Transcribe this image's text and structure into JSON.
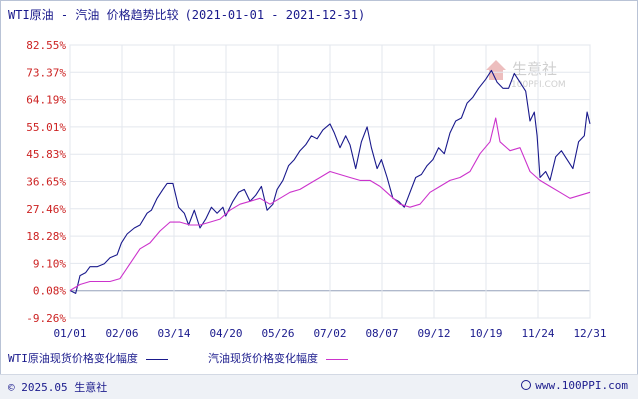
{
  "title": "WTI原油 - 汽油 价格趋势比较",
  "date_range": "(2021-01-01 - 2021-12-31)",
  "watermark": {
    "name": "生意社",
    "url": "100PPI.COM"
  },
  "legend": [
    {
      "label": "WTI原油现货价格变化幅度",
      "color": "#1a1a8c"
    },
    {
      "label": "汽油现货价格变化幅度",
      "color": "#cc33cc"
    }
  ],
  "footer": {
    "copyright": "© 2025.05 生意社",
    "site": "www.100PPI.com"
  },
  "chart_data": {
    "type": "line",
    "y_unit": "%",
    "y_ticks": [
      "82.55%",
      "73.37%",
      "64.19%",
      "55.01%",
      "45.83%",
      "36.65%",
      "27.46%",
      "18.28%",
      "9.10%",
      "0.08%",
      "-9.26%"
    ],
    "ylim": [
      -9.26,
      82.55
    ],
    "x_ticks": [
      "01/01",
      "02/06",
      "03/14",
      "04/20",
      "05/26",
      "07/02",
      "08/07",
      "09/12",
      "10/19",
      "11/24",
      "12/31"
    ],
    "xlim": [
      "2021-01-01",
      "2021-12-31"
    ],
    "grid": true,
    "legend_position": "bottom",
    "series": [
      {
        "name": "WTI原油现货价格变化幅度",
        "color": "#1a1a8c",
        "points": [
          [
            "2021-01-01",
            0
          ],
          [
            "2021-01-05",
            -1
          ],
          [
            "2021-01-08",
            5
          ],
          [
            "2021-01-12",
            6
          ],
          [
            "2021-01-15",
            8
          ],
          [
            "2021-01-20",
            8
          ],
          [
            "2021-01-25",
            9
          ],
          [
            "2021-01-29",
            11
          ],
          [
            "2021-02-03",
            12
          ],
          [
            "2021-02-06",
            16
          ],
          [
            "2021-02-10",
            19
          ],
          [
            "2021-02-15",
            21
          ],
          [
            "2021-02-19",
            22
          ],
          [
            "2021-02-24",
            26
          ],
          [
            "2021-02-27",
            27
          ],
          [
            "2021-03-03",
            31
          ],
          [
            "2021-03-07",
            34
          ],
          [
            "2021-03-10",
            36
          ],
          [
            "2021-03-14",
            36
          ],
          [
            "2021-03-18",
            28
          ],
          [
            "2021-03-22",
            26
          ],
          [
            "2021-03-25",
            22
          ],
          [
            "2021-03-29",
            27
          ],
          [
            "2021-04-02",
            21
          ],
          [
            "2021-04-06",
            24
          ],
          [
            "2021-04-10",
            28
          ],
          [
            "2021-04-14",
            26
          ],
          [
            "2021-04-18",
            28
          ],
          [
            "2021-04-20",
            25
          ],
          [
            "2021-04-25",
            30
          ],
          [
            "2021-04-29",
            33
          ],
          [
            "2021-05-03",
            34
          ],
          [
            "2021-05-07",
            30
          ],
          [
            "2021-05-11",
            32
          ],
          [
            "2021-05-15",
            35
          ],
          [
            "2021-05-19",
            27
          ],
          [
            "2021-05-23",
            29
          ],
          [
            "2021-05-26",
            34
          ],
          [
            "2021-05-30",
            37
          ],
          [
            "2021-06-03",
            42
          ],
          [
            "2021-06-07",
            44
          ],
          [
            "2021-06-11",
            47
          ],
          [
            "2021-06-15",
            49
          ],
          [
            "2021-06-19",
            52
          ],
          [
            "2021-06-23",
            51
          ],
          [
            "2021-06-27",
            54
          ],
          [
            "2021-07-02",
            56
          ],
          [
            "2021-07-05",
            53
          ],
          [
            "2021-07-09",
            48
          ],
          [
            "2021-07-13",
            52
          ],
          [
            "2021-07-16",
            49
          ],
          [
            "2021-07-20",
            41
          ],
          [
            "2021-07-24",
            50
          ],
          [
            "2021-07-28",
            55
          ],
          [
            "2021-07-31",
            48
          ],
          [
            "2021-08-04",
            41
          ],
          [
            "2021-08-07",
            44
          ],
          [
            "2021-08-11",
            38
          ],
          [
            "2021-08-15",
            31
          ],
          [
            "2021-08-19",
            30
          ],
          [
            "2021-08-23",
            28
          ],
          [
            "2021-08-27",
            33
          ],
          [
            "2021-08-31",
            38
          ],
          [
            "2021-09-04",
            39
          ],
          [
            "2021-09-08",
            42
          ],
          [
            "2021-09-12",
            44
          ],
          [
            "2021-09-16",
            48
          ],
          [
            "2021-09-20",
            46
          ],
          [
            "2021-09-24",
            53
          ],
          [
            "2021-09-28",
            57
          ],
          [
            "2021-10-02",
            58
          ],
          [
            "2021-10-06",
            63
          ],
          [
            "2021-10-10",
            65
          ],
          [
            "2021-10-14",
            68
          ],
          [
            "2021-10-19",
            71
          ],
          [
            "2021-10-23",
            74
          ],
          [
            "2021-10-27",
            70
          ],
          [
            "2021-10-31",
            68
          ],
          [
            "2021-11-04",
            68
          ],
          [
            "2021-11-08",
            73
          ],
          [
            "2021-11-12",
            70
          ],
          [
            "2021-11-16",
            67
          ],
          [
            "2021-11-19",
            57
          ],
          [
            "2021-11-22",
            60
          ],
          [
            "2021-11-24",
            52
          ],
          [
            "2021-11-26",
            38
          ],
          [
            "2021-11-30",
            40
          ],
          [
            "2021-12-03",
            37
          ],
          [
            "2021-12-07",
            45
          ],
          [
            "2021-12-11",
            47
          ],
          [
            "2021-12-15",
            44
          ],
          [
            "2021-12-19",
            41
          ],
          [
            "2021-12-23",
            50
          ],
          [
            "2021-12-27",
            52
          ],
          [
            "2021-12-29",
            60
          ],
          [
            "2021-12-31",
            56
          ]
        ]
      },
      {
        "name": "汽油现货价格变化幅度",
        "color": "#cc33cc",
        "points": [
          [
            "2021-01-01",
            0
          ],
          [
            "2021-01-08",
            2
          ],
          [
            "2021-01-15",
            3
          ],
          [
            "2021-01-22",
            3
          ],
          [
            "2021-01-29",
            3
          ],
          [
            "2021-02-05",
            4
          ],
          [
            "2021-02-12",
            9
          ],
          [
            "2021-02-19",
            14
          ],
          [
            "2021-02-26",
            16
          ],
          [
            "2021-03-05",
            20
          ],
          [
            "2021-03-12",
            23
          ],
          [
            "2021-03-19",
            23
          ],
          [
            "2021-03-26",
            22
          ],
          [
            "2021-04-02",
            22
          ],
          [
            "2021-04-09",
            23
          ],
          [
            "2021-04-16",
            24
          ],
          [
            "2021-04-23",
            27
          ],
          [
            "2021-04-30",
            29
          ],
          [
            "2021-05-07",
            30
          ],
          [
            "2021-05-14",
            31
          ],
          [
            "2021-05-21",
            29
          ],
          [
            "2021-05-28",
            31
          ],
          [
            "2021-06-04",
            33
          ],
          [
            "2021-06-11",
            34
          ],
          [
            "2021-06-18",
            36
          ],
          [
            "2021-06-25",
            38
          ],
          [
            "2021-07-02",
            40
          ],
          [
            "2021-07-09",
            39
          ],
          [
            "2021-07-16",
            38
          ],
          [
            "2021-07-23",
            37
          ],
          [
            "2021-07-30",
            37
          ],
          [
            "2021-08-06",
            35
          ],
          [
            "2021-08-13",
            32
          ],
          [
            "2021-08-20",
            29
          ],
          [
            "2021-08-27",
            28
          ],
          [
            "2021-09-03",
            29
          ],
          [
            "2021-09-10",
            33
          ],
          [
            "2021-09-17",
            35
          ],
          [
            "2021-09-24",
            37
          ],
          [
            "2021-10-01",
            38
          ],
          [
            "2021-10-08",
            40
          ],
          [
            "2021-10-15",
            46
          ],
          [
            "2021-10-22",
            50
          ],
          [
            "2021-10-26",
            58
          ],
          [
            "2021-10-29",
            50
          ],
          [
            "2021-11-05",
            47
          ],
          [
            "2021-11-12",
            48
          ],
          [
            "2021-11-19",
            40
          ],
          [
            "2021-11-26",
            37
          ],
          [
            "2021-12-03",
            35
          ],
          [
            "2021-12-10",
            33
          ],
          [
            "2021-12-17",
            31
          ],
          [
            "2021-12-24",
            32
          ],
          [
            "2021-12-31",
            33
          ]
        ]
      }
    ]
  }
}
